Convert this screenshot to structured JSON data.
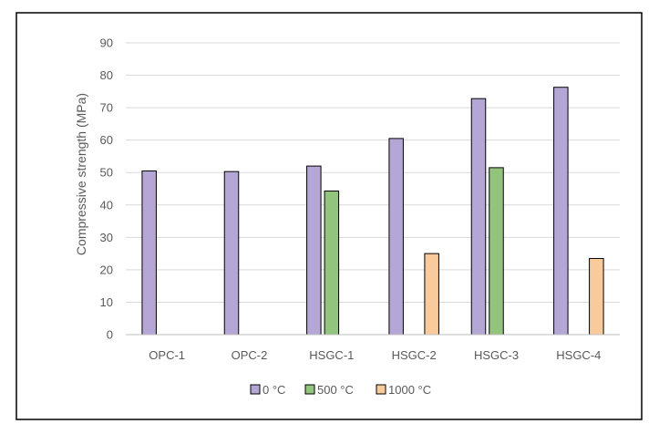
{
  "chart_data": {
    "type": "bar",
    "title": "",
    "xlabel": "",
    "ylabel": "Compressive strength (MPa)",
    "ylim": [
      0,
      90
    ],
    "yticks": [
      0,
      10,
      20,
      30,
      40,
      50,
      60,
      70,
      80,
      90
    ],
    "grid": true,
    "legend_position": "bottom",
    "categories": [
      "OPC-1",
      "OPC-2",
      "HSGC-1",
      "HSGC-2",
      "HSGC-3",
      "HSGC-4"
    ],
    "series": [
      {
        "name": "0 °C",
        "color": "#b4a7d6",
        "values": [
          50.5,
          50.3,
          52.0,
          60.5,
          72.8,
          76.3
        ]
      },
      {
        "name": "500 °C",
        "color": "#93c47d",
        "values": [
          null,
          null,
          44.3,
          null,
          51.5,
          null
        ]
      },
      {
        "name": "1000 °C",
        "color": "#f9cb9c",
        "values": [
          null,
          null,
          null,
          25.0,
          null,
          23.5
        ]
      }
    ]
  }
}
